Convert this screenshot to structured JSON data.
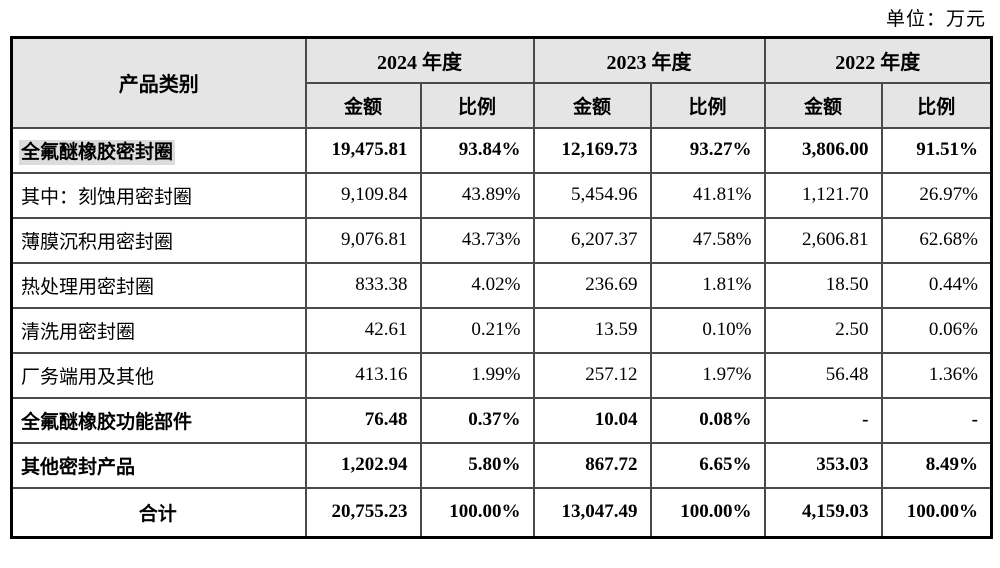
{
  "page": {
    "unit_label": "单位：万元"
  },
  "table": {
    "product_header": "产品类别",
    "year_headers": [
      "2024 年度",
      "2023 年度",
      "2022 年度"
    ],
    "amount_label": "金额",
    "ratio_label": "比例",
    "rows": [
      {
        "category": "全氟醚橡胶密封圈",
        "style": "bold",
        "highlight": true,
        "values": [
          "19,475.81",
          "93.84%",
          "12,169.73",
          "93.27%",
          "3,806.00",
          "91.51%"
        ]
      },
      {
        "category": "其中：刻蚀用密封圈",
        "style": "normal",
        "values": [
          "9,109.84",
          "43.89%",
          "5,454.96",
          "41.81%",
          "1,121.70",
          "26.97%"
        ]
      },
      {
        "category": "薄膜沉积用密封圈",
        "style": "normal",
        "values": [
          "9,076.81",
          "43.73%",
          "6,207.37",
          "47.58%",
          "2,606.81",
          "62.68%"
        ]
      },
      {
        "category": "热处理用密封圈",
        "style": "normal",
        "values": [
          "833.38",
          "4.02%",
          "236.69",
          "1.81%",
          "18.50",
          "0.44%"
        ]
      },
      {
        "category": "清洗用密封圈",
        "style": "normal",
        "values": [
          "42.61",
          "0.21%",
          "13.59",
          "0.10%",
          "2.50",
          "0.06%"
        ]
      },
      {
        "category": "厂务端用及其他",
        "style": "normal",
        "values": [
          "413.16",
          "1.99%",
          "257.12",
          "1.97%",
          "56.48",
          "1.36%"
        ]
      },
      {
        "category": "全氟醚橡胶功能部件",
        "style": "bold",
        "values": [
          "76.48",
          "0.37%",
          "10.04",
          "0.08%",
          "-",
          "-"
        ]
      },
      {
        "category": "其他密封产品",
        "style": "bold",
        "values": [
          "1,202.94",
          "5.80%",
          "867.72",
          "6.65%",
          "353.03",
          "8.49%"
        ]
      },
      {
        "category": "合计",
        "style": "bold",
        "align": "center",
        "values": [
          "20,755.23",
          "100.00%",
          "13,047.49",
          "100.00%",
          "4,159.03",
          "100.00%"
        ]
      }
    ]
  }
}
